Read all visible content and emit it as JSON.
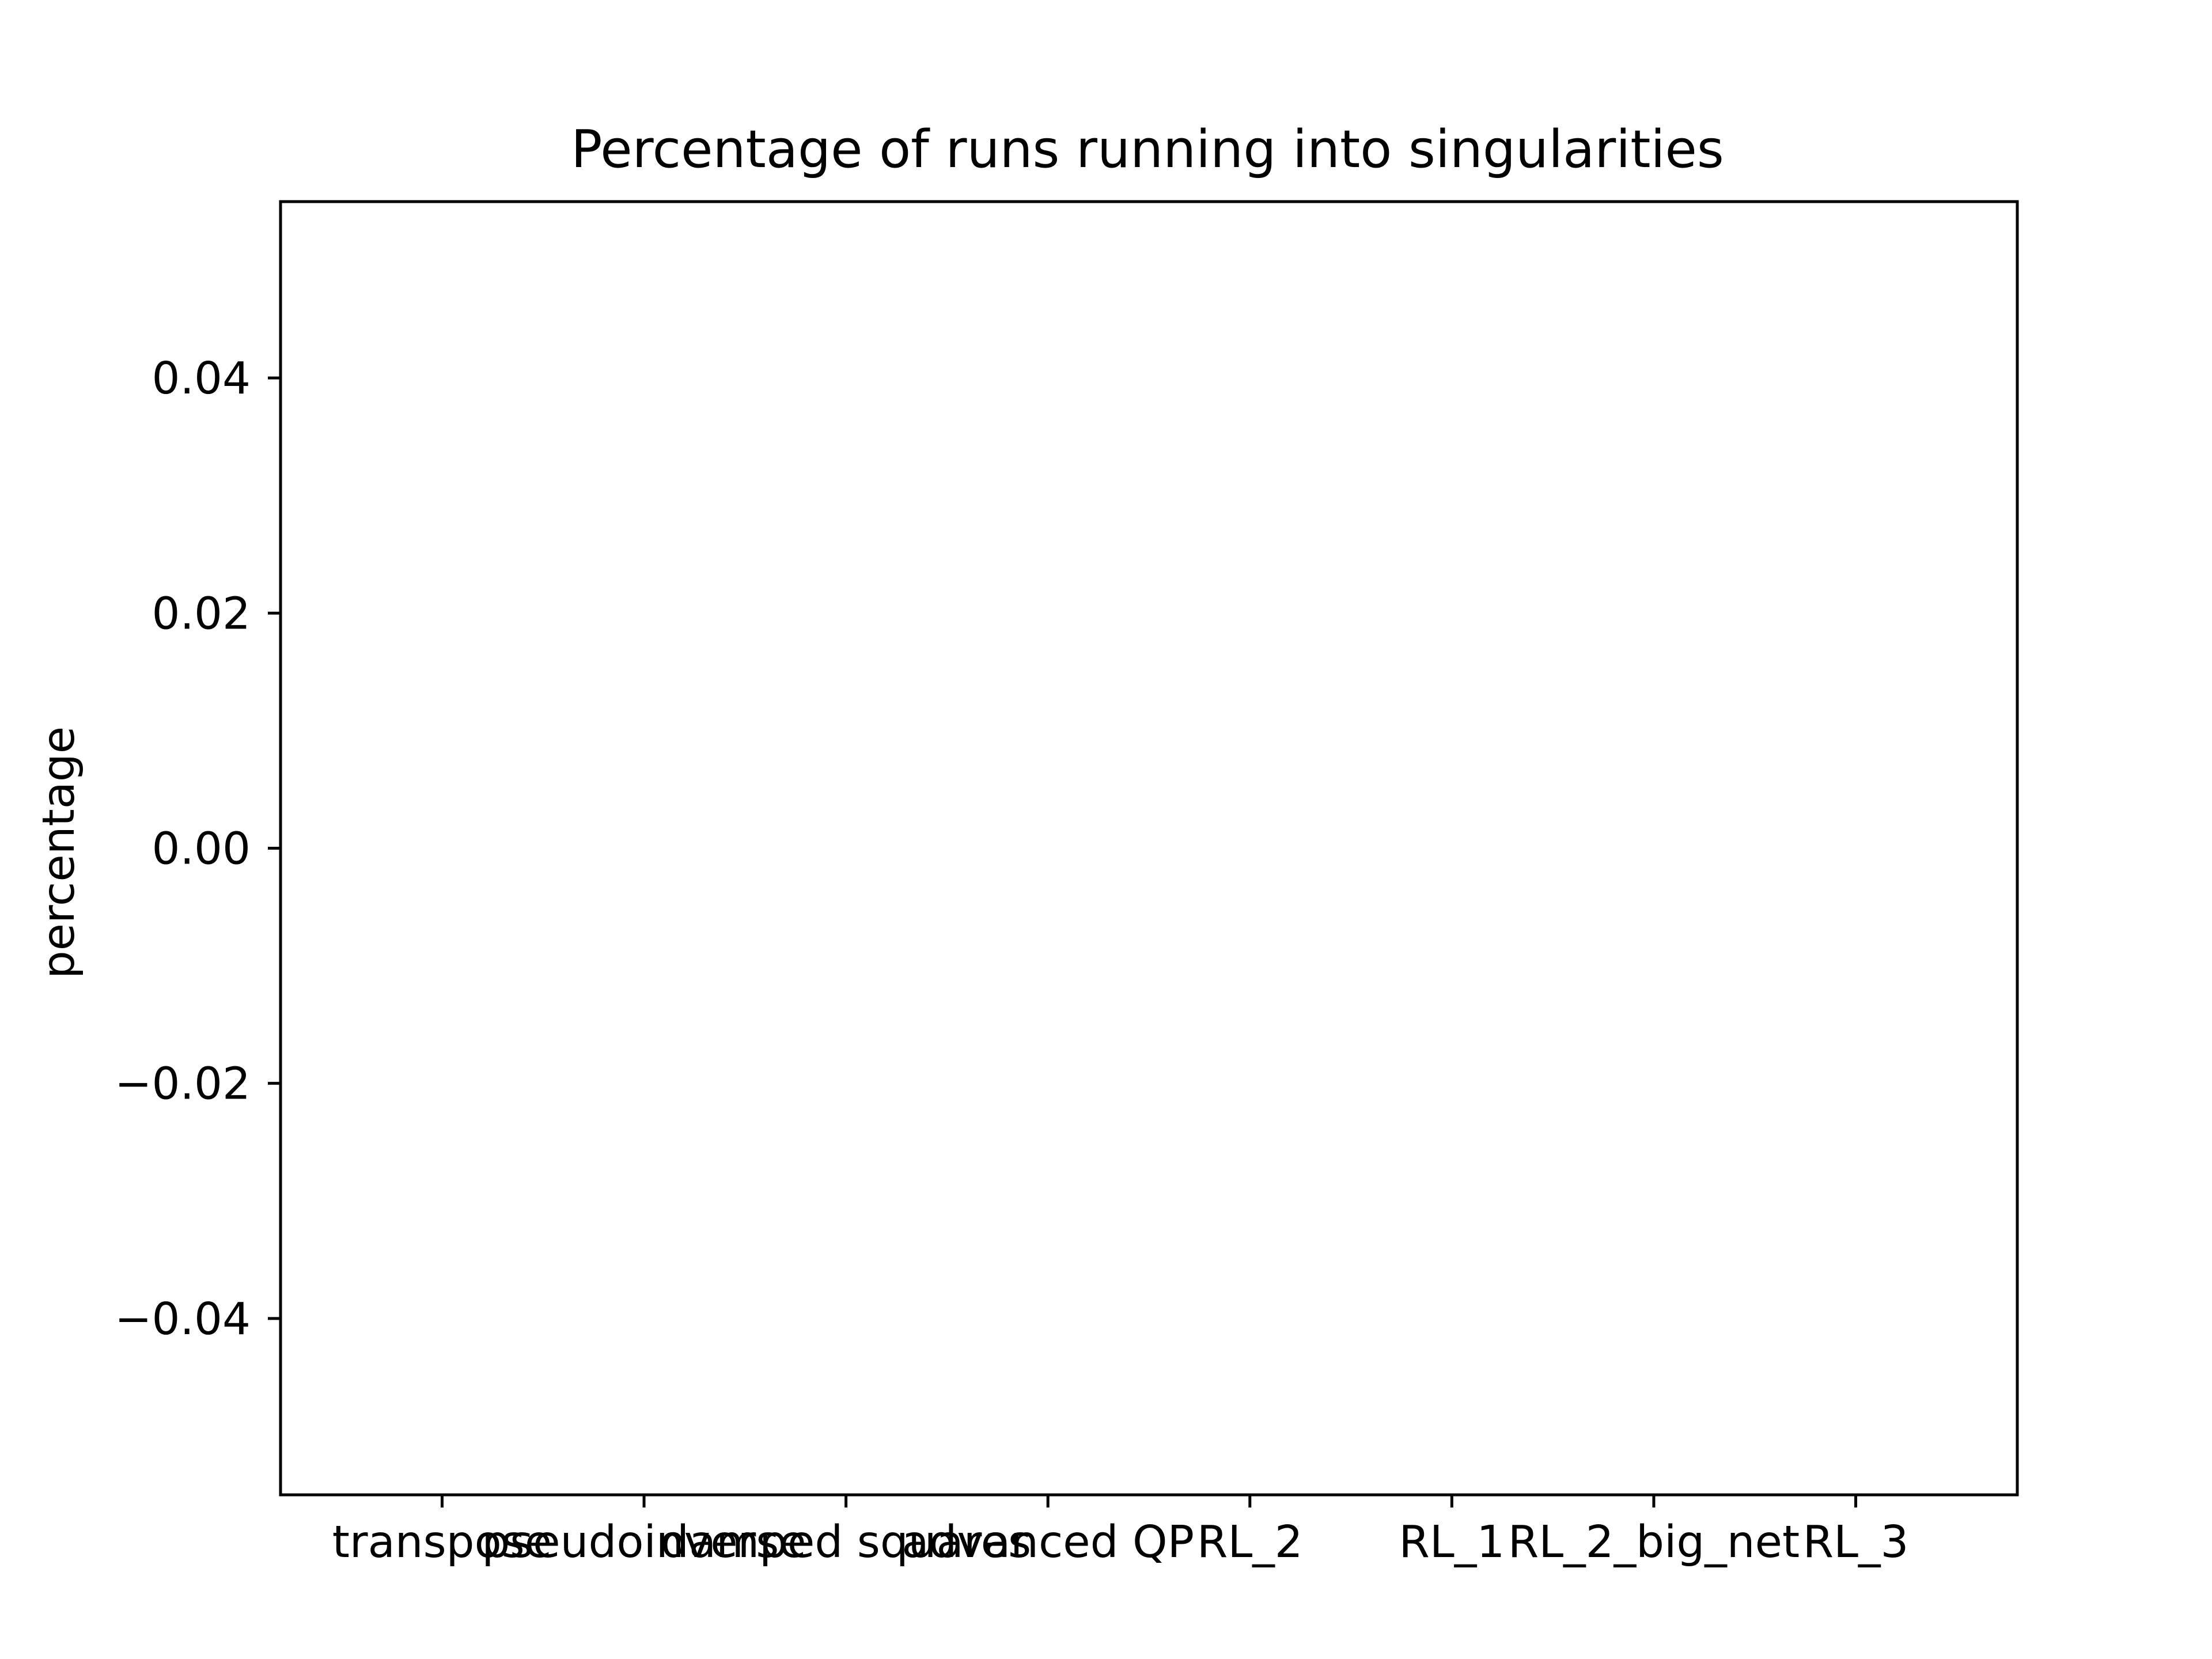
{
  "chart_data": {
    "type": "bar",
    "title": "Percentage of runs running into singularities",
    "xlabel": "",
    "ylabel": "percentage",
    "categories": [
      "transpose",
      "pseudoinverse",
      "damped squares",
      "advanced QP",
      "RL_2",
      "RL_1",
      "RL_2_big_net",
      "RL_3"
    ],
    "values": [
      0,
      0,
      0,
      0,
      0,
      0,
      0,
      0
    ],
    "ylim": [
      -0.055,
      0.055
    ],
    "xlim": [
      -0.8,
      7.8
    ],
    "yticks": [
      0.04,
      0.02,
      0.0,
      -0.02,
      -0.04
    ],
    "ytick_labels": [
      "0.04",
      "0.02",
      "0.00",
      "−0.02",
      "−0.04"
    ],
    "grid": false,
    "legend": "none",
    "colors": {
      "axis": "#000000",
      "background": "#ffffff",
      "bar": "#1f77b4"
    }
  }
}
